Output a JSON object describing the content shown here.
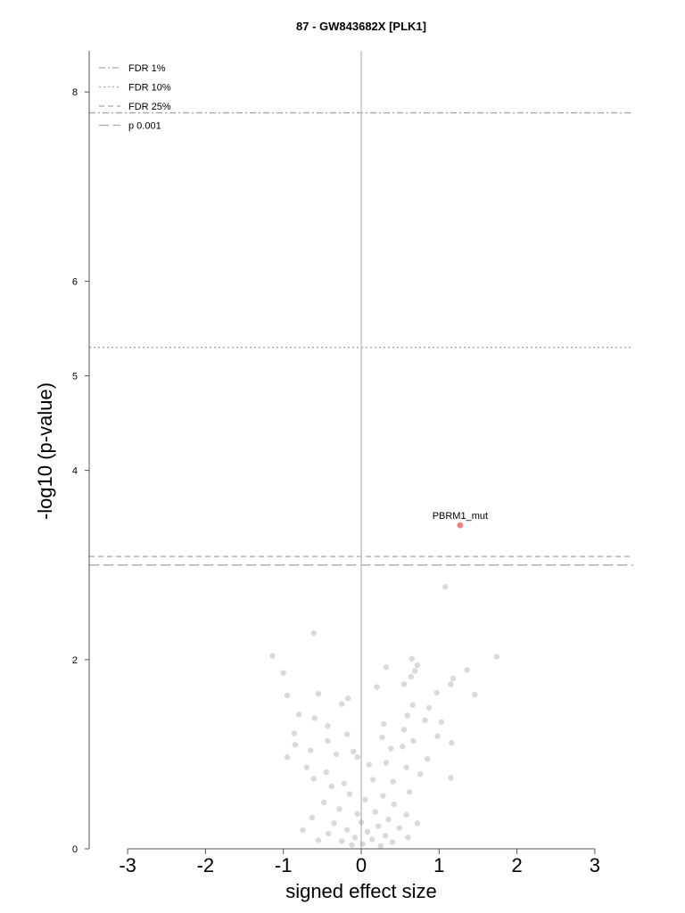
{
  "chart_data": {
    "type": "scatter",
    "title": "87 - GW843682X [PLK1]",
    "xlabel": "signed effect size",
    "ylabel": "-log10 (p-value)",
    "xlim": [
      -3.5,
      3.5
    ],
    "ylim": [
      0,
      8.5
    ],
    "x_ticks": [
      "-3",
      "-2",
      "-1",
      "0",
      "1",
      "2",
      "3"
    ],
    "y_ticks": [
      "0",
      "2",
      "4",
      "5",
      "6",
      "8"
    ],
    "grid": false,
    "legend_position": "top-left",
    "thresholds": [
      {
        "name": "FDR 1%",
        "y": 7.78,
        "style": "dashdot"
      },
      {
        "name": "FDR 10%",
        "y": 5.3,
        "style": "dotted"
      },
      {
        "name": "FDR 25%",
        "y": 3.09,
        "style": "dashed"
      },
      {
        "name": "p 0.001",
        "y": 3.0,
        "style": "longdash"
      }
    ],
    "highlighted": [
      {
        "label": "PBRM1_mut",
        "x": 1.27,
        "y": 3.42,
        "color": "#f08080"
      }
    ],
    "points": [
      [
        1.08,
        2.77
      ],
      [
        -0.61,
        2.28
      ],
      [
        -1.14,
        2.04
      ],
      [
        1.74,
        2.03
      ],
      [
        0.65,
        2.01
      ],
      [
        0.32,
        1.92
      ],
      [
        0.72,
        1.94
      ],
      [
        -1.0,
        1.86
      ],
      [
        1.36,
        1.89
      ],
      [
        0.69,
        1.88
      ],
      [
        0.64,
        1.82
      ],
      [
        1.18,
        1.8
      ],
      [
        1.15,
        1.74
      ],
      [
        0.55,
        1.74
      ],
      [
        0.2,
        1.71
      ],
      [
        1.46,
        1.63
      ],
      [
        -0.55,
        1.64
      ],
      [
        -0.17,
        1.59
      ],
      [
        0.97,
        1.65
      ],
      [
        -0.95,
        1.62
      ],
      [
        -0.25,
        1.53
      ],
      [
        0.66,
        1.52
      ],
      [
        0.87,
        1.49
      ],
      [
        -0.8,
        1.42
      ],
      [
        0.59,
        1.41
      ],
      [
        -0.6,
        1.38
      ],
      [
        0.29,
        1.32
      ],
      [
        0.82,
        1.36
      ],
      [
        -0.43,
        1.3
      ],
      [
        1.03,
        1.34
      ],
      [
        0.55,
        1.26
      ],
      [
        -0.18,
        1.21
      ],
      [
        -0.86,
        1.22
      ],
      [
        0.27,
        1.18
      ],
      [
        0.98,
        1.19
      ],
      [
        -0.43,
        1.14
      ],
      [
        0.67,
        1.14
      ],
      [
        -0.1,
        1.03
      ],
      [
        -0.85,
        1.1
      ],
      [
        1.16,
        1.12
      ],
      [
        -0.05,
        0.97
      ],
      [
        0.53,
        1.08
      ],
      [
        0.38,
        1.06
      ],
      [
        -0.65,
        1.04
      ],
      [
        0.85,
        0.95
      ],
      [
        -0.32,
        1.0
      ],
      [
        -0.95,
        0.97
      ],
      [
        0.32,
        0.91
      ],
      [
        -0.7,
        0.86
      ],
      [
        0.1,
        0.89
      ],
      [
        0.58,
        0.86
      ],
      [
        -0.45,
        0.81
      ],
      [
        0.76,
        0.79
      ],
      [
        1.15,
        0.75
      ],
      [
        -0.61,
        0.74
      ],
      [
        0.15,
        0.73
      ],
      [
        -0.22,
        0.69
      ],
      [
        0.41,
        0.71
      ],
      [
        -0.38,
        0.66
      ],
      [
        0.62,
        0.6
      ],
      [
        -0.15,
        0.58
      ],
      [
        0.28,
        0.56
      ],
      [
        0.05,
        0.52
      ],
      [
        -0.48,
        0.49
      ],
      [
        0.42,
        0.47
      ],
      [
        -0.28,
        0.42
      ],
      [
        0.18,
        0.39
      ],
      [
        -0.05,
        0.37
      ],
      [
        0.58,
        0.36
      ],
      [
        -0.63,
        0.33
      ],
      [
        0.35,
        0.31
      ],
      [
        0.0,
        0.28
      ],
      [
        -0.35,
        0.27
      ],
      [
        0.22,
        0.24
      ],
      [
        0.49,
        0.22
      ],
      [
        -0.18,
        0.2
      ],
      [
        0.08,
        0.18
      ],
      [
        -0.42,
        0.16
      ],
      [
        0.31,
        0.14
      ],
      [
        -0.08,
        0.12
      ],
      [
        0.14,
        0.1
      ],
      [
        -0.25,
        0.08
      ],
      [
        0.4,
        0.07
      ],
      [
        0.02,
        0.05
      ],
      [
        -0.12,
        0.04
      ],
      [
        0.25,
        0.03
      ],
      [
        0.6,
        0.12
      ],
      [
        -0.55,
        0.09
      ],
      [
        0.72,
        0.27
      ],
      [
        -0.75,
        0.2
      ]
    ]
  }
}
